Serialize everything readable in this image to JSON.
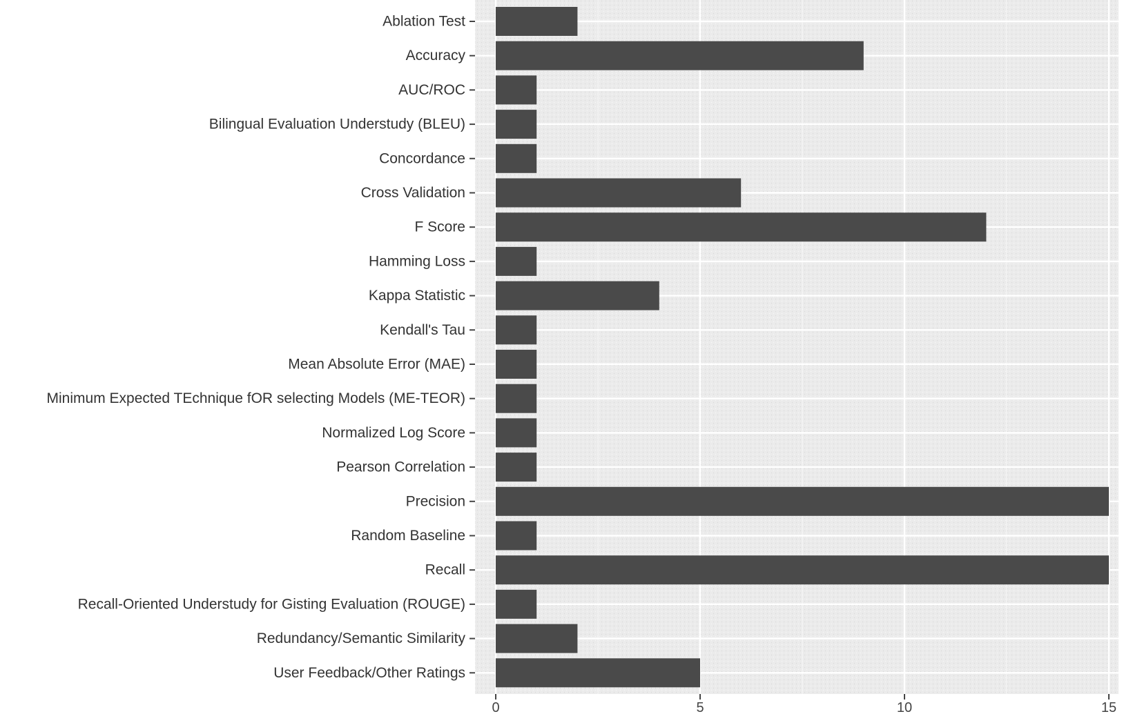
{
  "chart_data": {
    "type": "bar",
    "orientation": "horizontal",
    "title": "",
    "xlabel": "",
    "ylabel": "",
    "xlim": [
      0,
      15.5
    ],
    "xticks": [
      0,
      5,
      10,
      15
    ],
    "grid": true,
    "categories": [
      "Ablation Test",
      "Accuracy",
      "AUC/ROC",
      "Bilingual Evaluation Understudy (BLEU)",
      "Concordance",
      "Cross Validation",
      "F Score",
      "Hamming Loss",
      "Kappa Statistic",
      "Kendall's Tau",
      "Mean Absolute Error (MAE)",
      "Minimum Expected TEchnique fOR selecting Models (ME-TEOR)",
      "Normalized Log Score",
      "Pearson Correlation",
      "Precision",
      "Random Baseline",
      "Recall",
      "Recall-Oriented Understudy for Gisting Evaluation (ROUGE)",
      "Redundancy/Semantic Similarity",
      "User Feedback/Other Ratings"
    ],
    "values": [
      2,
      9,
      1,
      1,
      1,
      6,
      12,
      1,
      4,
      1,
      1,
      1,
      1,
      1,
      15,
      1,
      15,
      1,
      2,
      5
    ],
    "colors": {
      "bar": "#4a4a4a",
      "panel": "#ebebeb",
      "grid_major": "#ffffff",
      "grid_minor": "#f5f5f5"
    }
  }
}
